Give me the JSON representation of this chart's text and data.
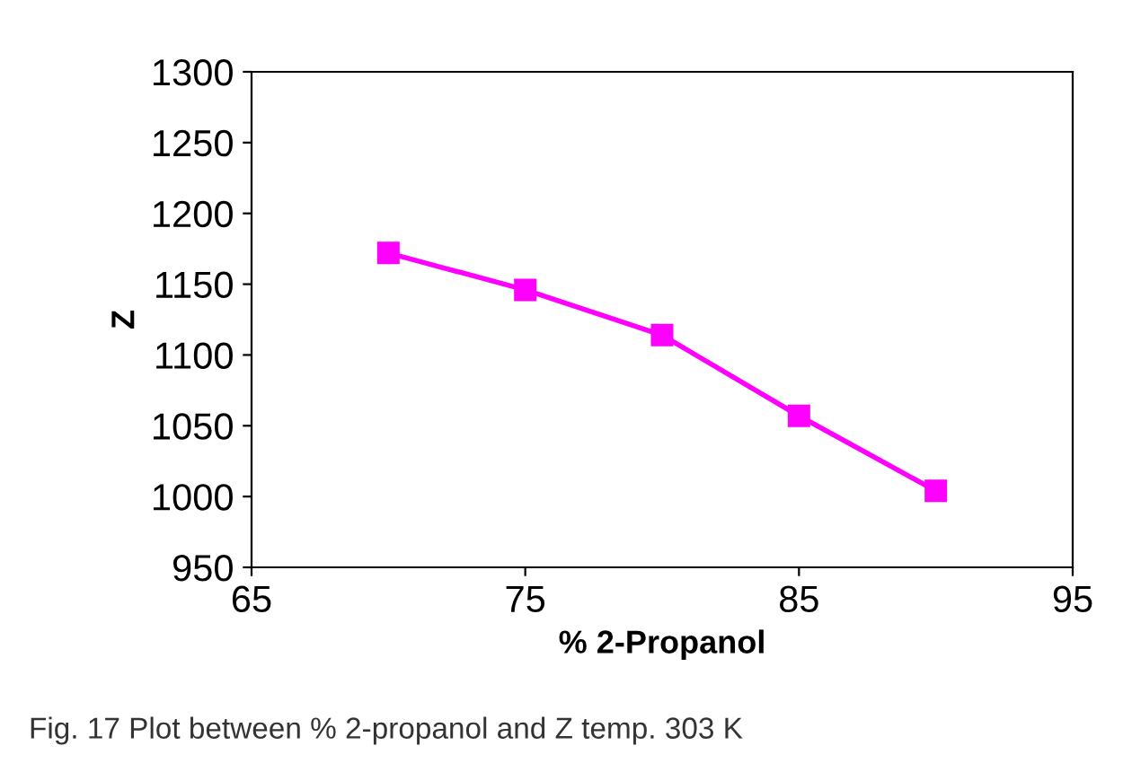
{
  "chart_data": {
    "type": "line",
    "x": [
      70,
      75,
      80,
      85,
      90
    ],
    "series": [
      {
        "color": "#ff00ff",
        "values": [
          1172,
          1146,
          1114,
          1057,
          1004
        ]
      }
    ],
    "xlabel": "% 2-Propanol",
    "ylabel": "Z",
    "xlim": [
      65,
      95
    ],
    "xticks": [
      65,
      75,
      85,
      95
    ],
    "ylim": [
      950,
      1300
    ],
    "yticks": [
      950,
      1000,
      1050,
      1100,
      1150,
      1200,
      1250,
      1300
    ],
    "marker": "square",
    "line_style": "solid",
    "grid": false,
    "legend": false,
    "annotations": [
      "Fig. 17 Plot between % 2-propanol and Z temp. 303 K"
    ]
  }
}
